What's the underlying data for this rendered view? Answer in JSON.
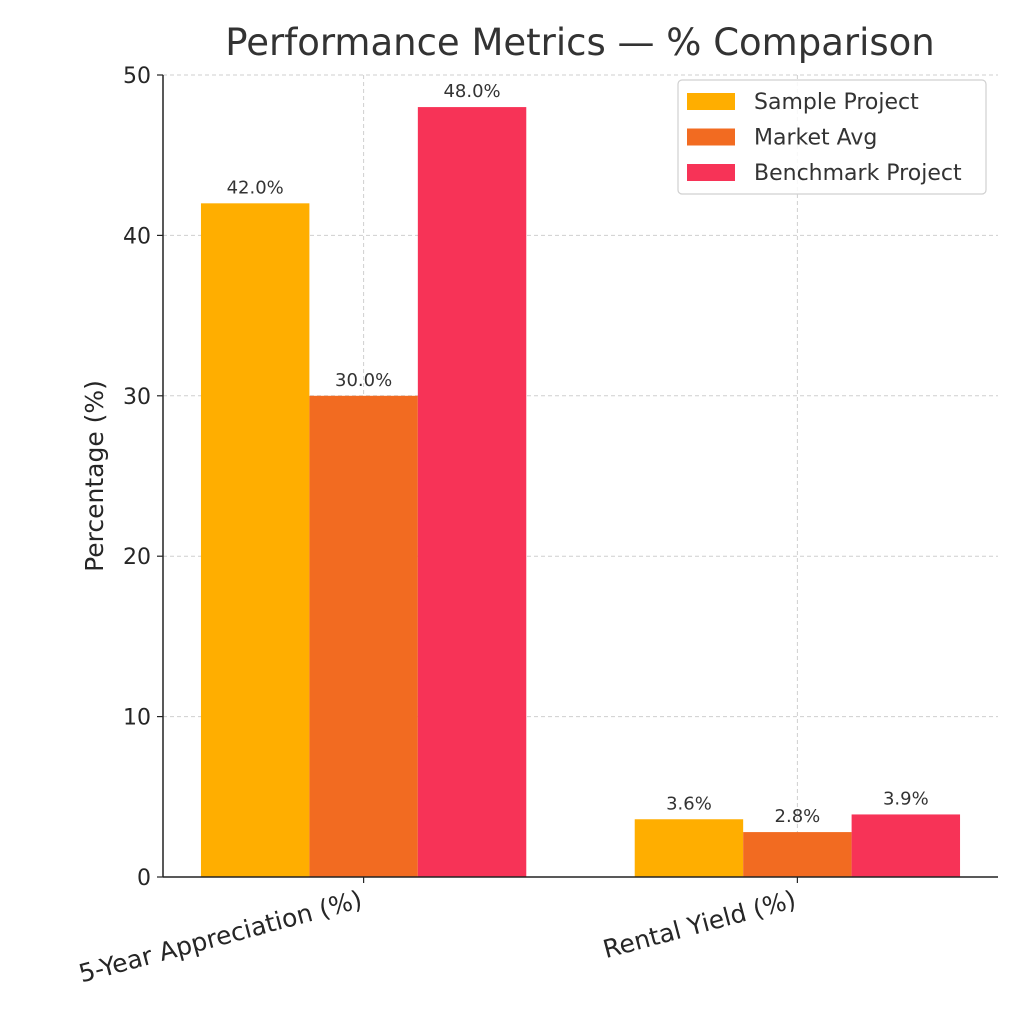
{
  "chart_data": {
    "type": "bar",
    "title": "Performance Metrics — % Comparison",
    "xlabel": "",
    "ylabel": "Percentage (%)",
    "categories": [
      "5-Year Appreciation (%)",
      "Rental Yield (%)"
    ],
    "series": [
      {
        "name": "Sample Project",
        "values": [
          42.0,
          3.6
        ],
        "labels": [
          "42.0%",
          "3.6%"
        ],
        "color": "#FFAE00"
      },
      {
        "name": "Market Avg",
        "values": [
          30.0,
          2.8
        ],
        "labels": [
          "30.0%",
          "2.8%"
        ],
        "color": "#F26B21"
      },
      {
        "name": "Benchmark Project",
        "values": [
          48.0,
          3.9
        ],
        "labels": [
          "48.0%",
          "3.9%"
        ],
        "color": "#F73357"
      }
    ],
    "ylim": [
      0,
      50
    ],
    "yticks": [
      "0",
      "10",
      "20",
      "30",
      "40",
      "50"
    ],
    "grid": true,
    "legend_position": "top-right"
  }
}
